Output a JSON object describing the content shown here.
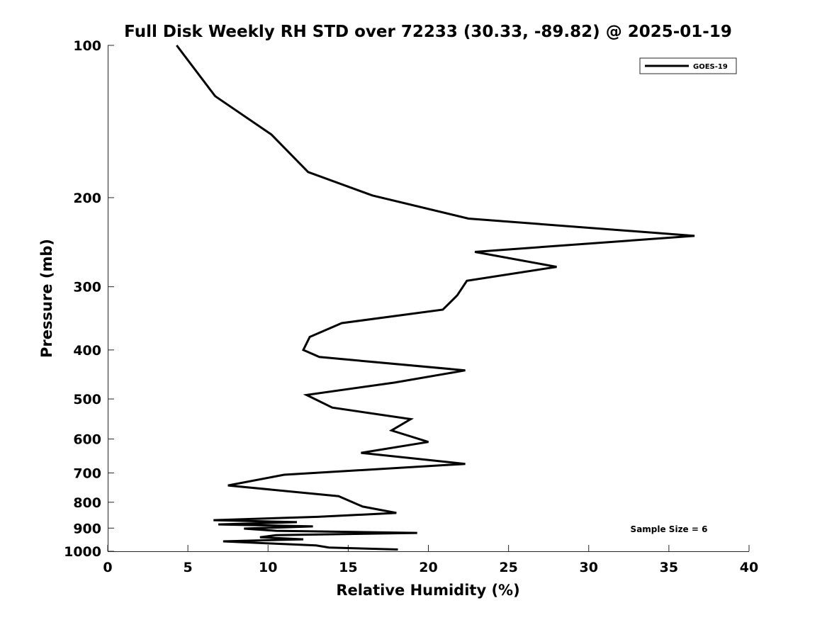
{
  "chart_data": {
    "type": "line",
    "title": "Full Disk Weekly RH STD over 72233 (30.33, -89.82) @ 2025-01-19",
    "xlabel": "Relative Humidity (%)",
    "ylabel": "Pressure (mb)",
    "xlim": [
      0,
      40
    ],
    "ylim": [
      100,
      1000
    ],
    "y_scale": "log",
    "y_reversed": true,
    "x_ticks": [
      0,
      5,
      10,
      15,
      20,
      25,
      30,
      35,
      40
    ],
    "y_ticks": [
      100,
      200,
      300,
      400,
      500,
      600,
      700,
      800,
      900,
      1000
    ],
    "legend": {
      "placement": "top-right"
    },
    "annotation": "Sample Size = 6",
    "series": [
      {
        "name": "GOES-19",
        "color": "#000000",
        "points": [
          [
            4.3,
            100
          ],
          [
            6.7,
            126
          ],
          [
            10.2,
            150
          ],
          [
            12.5,
            178
          ],
          [
            16.5,
            198
          ],
          [
            22.5,
            220
          ],
          [
            36.6,
            238
          ],
          [
            22.9,
            256
          ],
          [
            28.0,
            274
          ],
          [
            22.4,
            292
          ],
          [
            21.8,
            312
          ],
          [
            20.9,
            333
          ],
          [
            14.6,
            354
          ],
          [
            12.6,
            377
          ],
          [
            12.2,
            400
          ],
          [
            13.2,
            413
          ],
          [
            22.3,
            439
          ],
          [
            17.9,
            464
          ],
          [
            12.4,
            491
          ],
          [
            14.0,
            520
          ],
          [
            18.9,
            548
          ],
          [
            17.7,
            577
          ],
          [
            20.0,
            608
          ],
          [
            15.8,
            639
          ],
          [
            22.3,
            672
          ],
          [
            11.0,
            706
          ],
          [
            7.5,
            741
          ],
          [
            14.4,
            778
          ],
          [
            15.9,
            816
          ],
          [
            18.0,
            840
          ],
          [
            13.1,
            855
          ],
          [
            6.6,
            868
          ],
          [
            11.8,
            876
          ],
          [
            6.9,
            885
          ],
          [
            12.8,
            893
          ],
          [
            8.5,
            902
          ],
          [
            10.5,
            911
          ],
          [
            19.3,
            920
          ],
          [
            10.5,
            929
          ],
          [
            9.5,
            938
          ],
          [
            12.2,
            947
          ],
          [
            7.2,
            956
          ],
          [
            10.2,
            965
          ],
          [
            13.0,
            974
          ],
          [
            13.8,
            983
          ],
          [
            18.1,
            992
          ]
        ]
      }
    ]
  }
}
